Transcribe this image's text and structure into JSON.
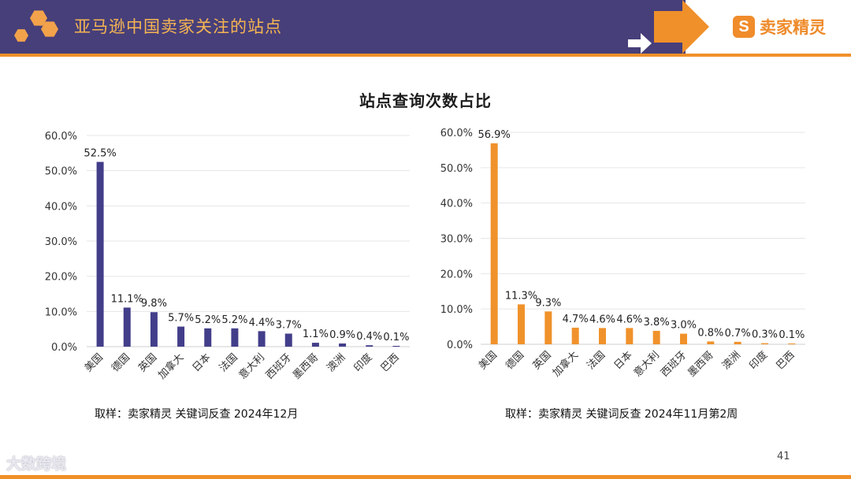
{
  "header": {
    "title": "亚马逊中国卖家关注的站点",
    "logo_text": "卖家精灵",
    "logo_mark": "S",
    "band_color": "#473f7a",
    "accent_color": "#f0902a"
  },
  "main_title": "站点查询次数占比",
  "page_number": "41",
  "watermark": "大数跨境",
  "chart_data": [
    {
      "type": "bar",
      "color": "#433e8a",
      "categories": [
        "美国",
        "德国",
        "英国",
        "加拿大",
        "日本",
        "法国",
        "意大利",
        "西班牙",
        "墨西哥",
        "澳洲",
        "印度",
        "巴西"
      ],
      "values": [
        52.5,
        11.1,
        9.8,
        5.7,
        5.2,
        5.2,
        4.4,
        3.7,
        1.1,
        0.9,
        0.4,
        0.1
      ],
      "value_labels": [
        "52.5%",
        "11.1%",
        "9.8%",
        "5.7%",
        "5.2%",
        "5.2%",
        "4.4%",
        "3.7%",
        "1.1%",
        "0.9%",
        "0.4%",
        "0.1%"
      ],
      "ylim": [
        0,
        60
      ],
      "yticks": [
        "0.0%",
        "10.0%",
        "20.0%",
        "30.0%",
        "40.0%",
        "50.0%",
        "60.0%"
      ],
      "grid": true,
      "legend": "none",
      "source": "取样：卖家精灵 关键词反查 2024年12月"
    },
    {
      "type": "bar",
      "color": "#f0922b",
      "categories": [
        "美国",
        "德国",
        "英国",
        "加拿大",
        "法国",
        "日本",
        "意大利",
        "西班牙",
        "墨西哥",
        "澳洲",
        "印度",
        "巴西"
      ],
      "values": [
        56.9,
        11.3,
        9.3,
        4.7,
        4.6,
        4.6,
        3.8,
        3.0,
        0.8,
        0.7,
        0.3,
        0.1
      ],
      "value_labels": [
        "56.9%",
        "11.3%",
        "9.3%",
        "4.7%",
        "4.6%",
        "4.6%",
        "3.8%",
        "3.0%",
        "0.8%",
        "0.7%",
        "0.3%",
        "0.1%"
      ],
      "ylim": [
        0,
        60
      ],
      "yticks": [
        "0.0%",
        "10.0%",
        "20.0%",
        "30.0%",
        "40.0%",
        "50.0%",
        "60.0%"
      ],
      "grid": true,
      "legend": "none",
      "source": "取样：卖家精灵 关键词反查 2024年11月第2周"
    }
  ]
}
